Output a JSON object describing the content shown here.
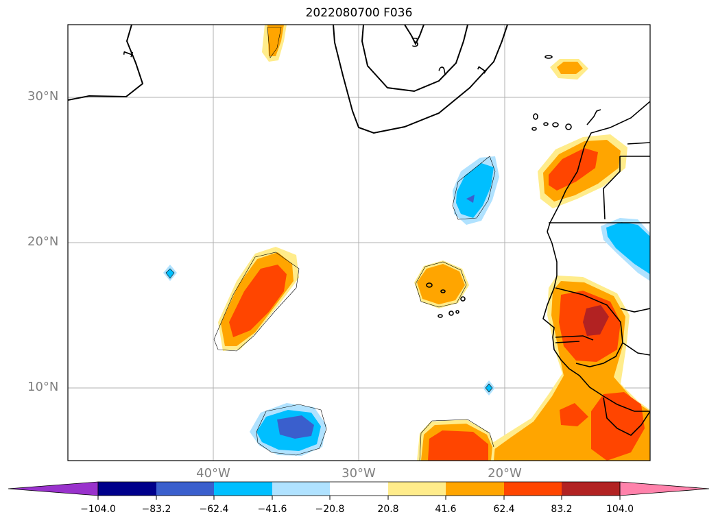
{
  "title": "2022080700 F036",
  "map": {
    "lat_labels": [
      "30°N",
      "20°N",
      "10°N"
    ],
    "lon_labels": [
      "40°W",
      "30°W",
      "20°W"
    ],
    "contour_labels": [
      "1",
      "3",
      "2",
      "1"
    ]
  },
  "colorbar": {
    "ticks": [
      "−104.0",
      "−83.2",
      "−62.4",
      "−41.6",
      "−20.8",
      "20.8",
      "41.6",
      "62.4",
      "83.2",
      "104.0"
    ],
    "colors": [
      "#9932cc",
      "#00008b",
      "#3a5fcd",
      "#00bfff",
      "#b0e2ff",
      "#ffffff",
      "#ffec8b",
      "#ffa500",
      "#ff4500",
      "#b22222",
      "#ff82ab"
    ]
  }
}
